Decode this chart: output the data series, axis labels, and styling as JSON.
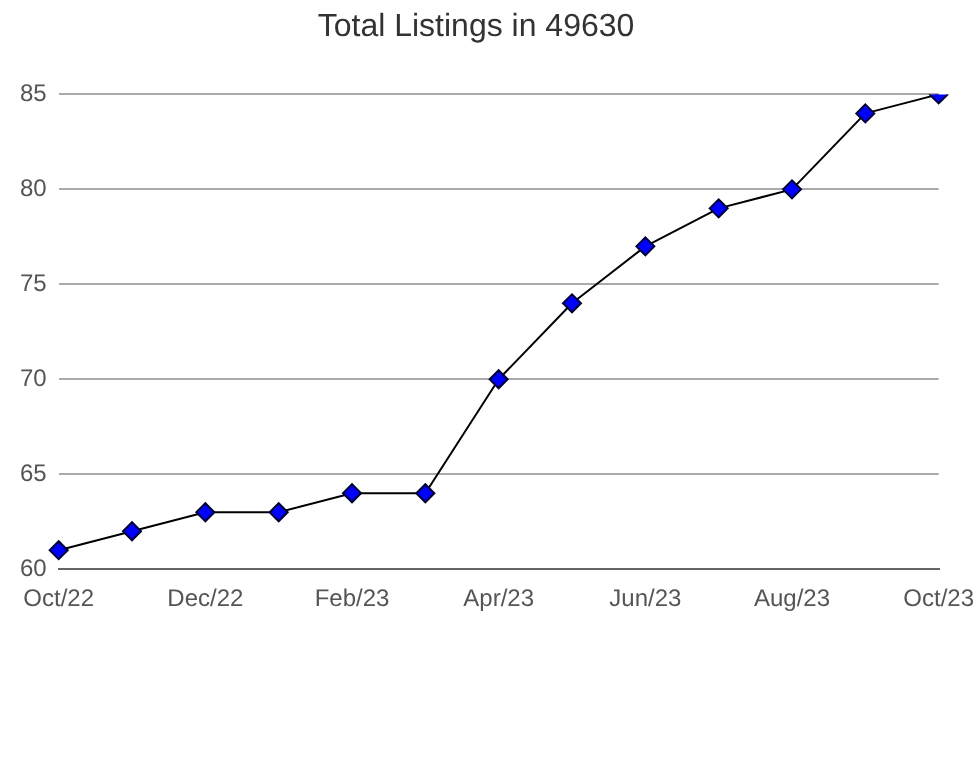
{
  "chart_data": {
    "type": "line",
    "title": "Total Listings in 49630",
    "categories": [
      "Oct/22",
      null,
      "Dec/22",
      null,
      "Feb/23",
      null,
      "Apr/23",
      null,
      "Jun/23",
      null,
      "Aug/23",
      null,
      "Oct/23"
    ],
    "series": [
      {
        "color": "#0000ff",
        "values": [
          61,
          62,
          63,
          63,
          64,
          64,
          70,
          74,
          77,
          79,
          80,
          84,
          85
        ]
      }
    ],
    "ylim": [
      60,
      85
    ],
    "yticks": [
      60,
      65,
      70,
      75,
      80,
      85
    ],
    "grid": "y",
    "marker": "diamond",
    "line_style": "solid",
    "legend": false
  }
}
